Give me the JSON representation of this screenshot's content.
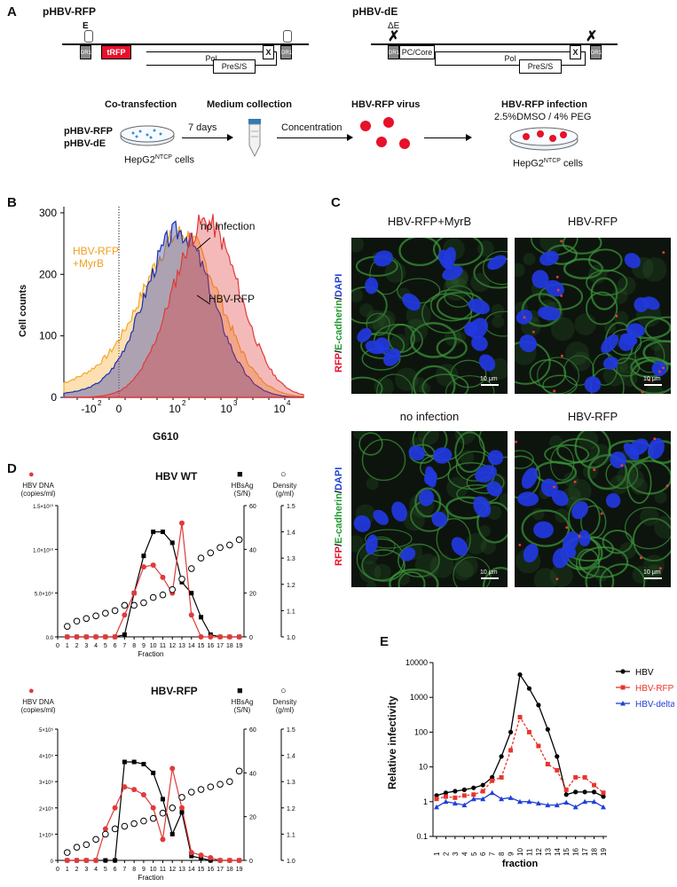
{
  "panel_labels": {
    "A": "A",
    "B": "B",
    "C": "C",
    "D": "D",
    "E": "E"
  },
  "panelA": {
    "construct1": "pHBV-RFP",
    "construct2": "pHBV-dE",
    "e_label": "E",
    "de_label": "ΔE",
    "dr1": "DR1",
    "trfp": "tRFP",
    "pol": "Pol",
    "pres": "PreS/S",
    "x": "X",
    "pccore": "PC/Core",
    "step1_title": "Co-transfection",
    "step1_line1": "pHBV-RFP",
    "step1_line2": "pHBV-dE",
    "step1_days": "7 days",
    "step1_cells": "HepG2",
    "step1_cells_sup": "NTCP",
    "step1_cells_end": " cells",
    "step2_title": "Medium collection",
    "step2_action": "Concentration",
    "step3_title": "HBV-RFP virus",
    "step4_title": "HBV-RFP infection",
    "step4_cond": "2.5%DMSO / 4% PEG",
    "step4_cells": "HepG2",
    "step4_cells_sup": "NTCP",
    "step4_cells_end": " cells"
  },
  "panelB": {
    "ylabel": "Cell counts",
    "xlabel": "G610",
    "yticks": [
      "0",
      "100",
      "200",
      "300"
    ],
    "xticks": [
      "-10",
      "2",
      "0",
      "10",
      "2",
      "10",
      "3",
      "10",
      "4"
    ],
    "legend_noinf": "no infection",
    "legend_myrb1": "HBV-RFP",
    "legend_myrb2": "+MyrB",
    "legend_rfp": "HBV-RFP",
    "colors": {
      "noinf": "#1a2fb0",
      "myrb": "#f5a623",
      "rfp": "#e03a3a"
    }
  },
  "panelC": {
    "titles": [
      "HBV-RFP+MyrB",
      "HBV-RFP",
      "no infection",
      "HBV-RFP"
    ],
    "stain_rfp": "RFP",
    "stain_ecad": "E-cadherin",
    "stain_dapi": "DAPI",
    "sep": "/",
    "scale": "10 μm"
  },
  "panelD": {
    "wt_title": "HBV WT",
    "rfp_title": "HBV-RFP",
    "left_label1": "HBV DNA",
    "left_label2": "(copies/ml)",
    "mid_label1": "HBsAg",
    "mid_label2": "(S/N)",
    "right_label1": "Density",
    "right_label2": "(g/ml)",
    "xlabel": "Fraction",
    "wt_left_ticks": [
      "0.0",
      "5.0×10⁹",
      "1.0×10¹⁰",
      "1.5×10¹⁰"
    ],
    "rfp_left_ticks": [
      "0",
      "1×10⁵",
      "2×10⁵",
      "3×10⁵",
      "4×10⁵",
      "5×10⁵"
    ],
    "mid_ticks": [
      "0",
      "20",
      "40",
      "60"
    ],
    "right_ticks": [
      "1.0",
      "1.1",
      "1.2",
      "1.3",
      "1.4",
      "1.5"
    ],
    "x_ticks": [
      "0",
      "1",
      "2",
      "3",
      "4",
      "5",
      "6",
      "7",
      "8",
      "9",
      "10",
      "11",
      "12",
      "13",
      "14",
      "15",
      "16",
      "17",
      "18",
      "19"
    ]
  },
  "panelE": {
    "ylabel": "Relative infectivity",
    "xlabel": "fraction",
    "yticks": [
      "0.1",
      "1",
      "10",
      "100",
      "1000",
      "10000"
    ],
    "xticks": [
      "1",
      "2",
      "3",
      "4",
      "5",
      "6",
      "7",
      "8",
      "9",
      "10",
      "11",
      "12",
      "13",
      "14",
      "15",
      "16",
      "17",
      "18",
      "19"
    ],
    "legend": [
      "HBV",
      "HBV-RFP",
      "HBV-deltaE"
    ],
    "colors": [
      "#000000",
      "#e8352b",
      "#1f3fd6"
    ]
  },
  "chart_data": [
    {
      "type": "line",
      "title": "HBV WT",
      "xlabel": "Fraction",
      "x": [
        1,
        2,
        3,
        4,
        5,
        6,
        7,
        8,
        9,
        10,
        11,
        12,
        13,
        14,
        15,
        16,
        17,
        18,
        19
      ],
      "series": [
        {
          "name": "HBV DNA",
          "axis": "left",
          "ylim": [
            0,
            15000000000
          ],
          "values": [
            0,
            0,
            0,
            0,
            0,
            0,
            2500000000,
            5000000000,
            8000000000,
            8200000000,
            6800000000,
            5000000000,
            13000000000,
            2500000000,
            0,
            0,
            0,
            0,
            0
          ]
        },
        {
          "name": "HBsAg",
          "axis": "middle",
          "ylim": [
            0,
            60
          ],
          "values": [
            0,
            0,
            0,
            0,
            0,
            0,
            1,
            20,
            37,
            48,
            48,
            43,
            25,
            20,
            9,
            1,
            0,
            0,
            0
          ]
        },
        {
          "name": "Density",
          "axis": "right",
          "ylim": [
            1.0,
            1.5
          ],
          "values": [
            1.04,
            1.06,
            1.07,
            1.08,
            1.09,
            1.1,
            1.12,
            1.12,
            1.13,
            1.15,
            1.16,
            1.18,
            1.22,
            1.26,
            1.3,
            1.32,
            1.34,
            1.35,
            1.37
          ]
        }
      ]
    },
    {
      "type": "line",
      "title": "HBV-RFP",
      "xlabel": "Fraction",
      "x": [
        1,
        2,
        3,
        4,
        5,
        6,
        7,
        8,
        9,
        10,
        11,
        12,
        13,
        14,
        15,
        16,
        17,
        18,
        19
      ],
      "series": [
        {
          "name": "HBV DNA",
          "axis": "left",
          "ylim": [
            0,
            500000
          ],
          "values": [
            0,
            0,
            0,
            0,
            120000,
            200000,
            280000,
            270000,
            250000,
            200000,
            80000,
            350000,
            200000,
            30000,
            20000,
            10000,
            0,
            0,
            0
          ]
        },
        {
          "name": "HBsAg",
          "axis": "middle",
          "ylim": [
            0,
            60
          ],
          "values": [
            0,
            0,
            0,
            0,
            0,
            0,
            45,
            45,
            44,
            40,
            28,
            12,
            22,
            2,
            1,
            0,
            0,
            0,
            0
          ]
        },
        {
          "name": "Density",
          "axis": "right",
          "ylim": [
            1.0,
            1.5
          ],
          "values": [
            1.03,
            1.05,
            1.06,
            1.08,
            1.1,
            1.12,
            1.13,
            1.14,
            1.15,
            1.16,
            1.18,
            1.2,
            1.24,
            1.26,
            1.27,
            1.28,
            1.29,
            1.3,
            1.34
          ]
        }
      ]
    },
    {
      "type": "line",
      "xlabel": "fraction",
      "ylabel": "Relative infectivity",
      "yscale": "log",
      "ylim": [
        0.1,
        10000
      ],
      "x": [
        1,
        2,
        3,
        4,
        5,
        6,
        7,
        8,
        9,
        10,
        11,
        12,
        13,
        14,
        15,
        16,
        17,
        18,
        19
      ],
      "series": [
        {
          "name": "HBV",
          "values": [
            1.5,
            1.8,
            2,
            2.2,
            2.5,
            3,
            5,
            20,
            100,
            4500,
            1800,
            600,
            120,
            20,
            1.6,
            1.9,
            1.9,
            1.9,
            1.4
          ]
        },
        {
          "name": "HBV-RFP",
          "values": [
            1.2,
            1.4,
            1.3,
            1.5,
            1.6,
            2,
            4,
            5,
            30,
            270,
            100,
            40,
            12,
            8,
            2.2,
            5,
            5,
            3,
            1.8
          ]
        },
        {
          "name": "HBV-deltaE",
          "values": [
            0.7,
            1,
            0.9,
            0.8,
            1.2,
            1.2,
            1.8,
            1.2,
            1.3,
            1,
            1,
            0.9,
            0.8,
            0.8,
            0.95,
            0.7,
            1,
            1,
            0.7
          ]
        }
      ]
    }
  ]
}
